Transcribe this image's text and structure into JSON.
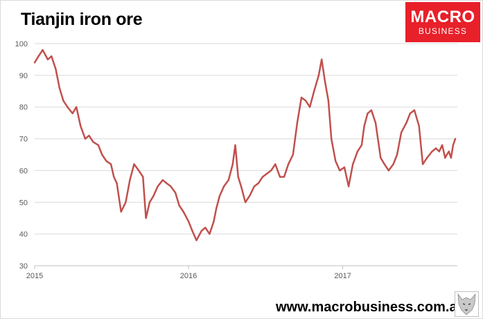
{
  "title": "Tianjin iron ore",
  "logo": {
    "line1": "MACRO",
    "line2": "BUSINESS",
    "color": "#e8202a"
  },
  "footer": {
    "url": "www.macrobusiness.com.au"
  },
  "chart_data": {
    "type": "line",
    "title": "Tianjin iron ore",
    "xlabel": "",
    "ylabel": "",
    "ylim": [
      30,
      100
    ],
    "y_ticks": [
      30,
      40,
      50,
      60,
      70,
      80,
      90,
      100
    ],
    "xlim": [
      "2015-01-01",
      "2017-09-30"
    ],
    "x_ticks": [
      {
        "date": "2015-01-01",
        "label": "2015"
      },
      {
        "date": "2016-01-01",
        "label": "2016"
      },
      {
        "date": "2017-01-01",
        "label": "2017"
      }
    ],
    "grid": true,
    "legend": "none",
    "line_color": "#c0504d",
    "series": [
      {
        "x": [
          "2015-01-01",
          "2015-01-10",
          "2015-01-20",
          "2015-02-01",
          "2015-02-10",
          "2015-02-20",
          "2015-03-01",
          "2015-03-10",
          "2015-03-20",
          "2015-04-01",
          "2015-04-10",
          "2015-04-20",
          "2015-05-01",
          "2015-05-10",
          "2015-05-20",
          "2015-06-01",
          "2015-06-10",
          "2015-06-20",
          "2015-07-01",
          "2015-07-08",
          "2015-07-15",
          "2015-07-25",
          "2015-08-05",
          "2015-08-15",
          "2015-08-25",
          "2015-09-05",
          "2015-09-15",
          "2015-09-22",
          "2015-10-01",
          "2015-10-10",
          "2015-10-20",
          "2015-11-01",
          "2015-11-10",
          "2015-11-20",
          "2015-12-01",
          "2015-12-10",
          "2015-12-20",
          "2016-01-01",
          "2016-01-10",
          "2016-01-20",
          "2016-02-01",
          "2016-02-10",
          "2016-02-20",
          "2016-03-01",
          "2016-03-07",
          "2016-03-15",
          "2016-03-25",
          "2016-04-05",
          "2016-04-15",
          "2016-04-21",
          "2016-04-28",
          "2016-05-05",
          "2016-05-15",
          "2016-05-25",
          "2016-06-05",
          "2016-06-15",
          "2016-06-25",
          "2016-07-05",
          "2016-07-15",
          "2016-07-25",
          "2016-08-05",
          "2016-08-15",
          "2016-08-25",
          "2016-09-05",
          "2016-09-15",
          "2016-09-25",
          "2016-10-05",
          "2016-10-15",
          "2016-10-25",
          "2016-11-05",
          "2016-11-12",
          "2016-11-20",
          "2016-11-28",
          "2016-12-05",
          "2016-12-15",
          "2016-12-25",
          "2017-01-05",
          "2017-01-15",
          "2017-01-25",
          "2017-02-05",
          "2017-02-15",
          "2017-02-21",
          "2017-03-01",
          "2017-03-10",
          "2017-03-20",
          "2017-04-01",
          "2017-04-10",
          "2017-04-20",
          "2017-05-01",
          "2017-05-10",
          "2017-05-20",
          "2017-06-01",
          "2017-06-10",
          "2017-06-20",
          "2017-07-01",
          "2017-07-10",
          "2017-07-20",
          "2017-08-01",
          "2017-08-10",
          "2017-08-18",
          "2017-08-25",
          "2017-09-01",
          "2017-09-05",
          "2017-09-10",
          "2017-09-15",
          "2017-09-20",
          "2017-09-25"
        ],
        "values": [
          94,
          96,
          98,
          95,
          96,
          92,
          86,
          82,
          80,
          78,
          80,
          74,
          70,
          71,
          69,
          68,
          65,
          63,
          62,
          58,
          56,
          47,
          50,
          57,
          62,
          60,
          58,
          45,
          50,
          52,
          55,
          57,
          56,
          55,
          53,
          49,
          47,
          44,
          41,
          38,
          41,
          42,
          40,
          44,
          48,
          52,
          55,
          57,
          62,
          68,
          58,
          55,
          50,
          52,
          55,
          56,
          58,
          59,
          60,
          62,
          58,
          58,
          62,
          65,
          75,
          83,
          82,
          80,
          85,
          90,
          95,
          88,
          82,
          70,
          63,
          60,
          61,
          55,
          62,
          66,
          68,
          74,
          78,
          79,
          75,
          64,
          62,
          60,
          62,
          65,
          72,
          75,
          78,
          79,
          74,
          62,
          64,
          66,
          67,
          66,
          68,
          64,
          65,
          66,
          64,
          68,
          70
        ]
      }
    ]
  }
}
